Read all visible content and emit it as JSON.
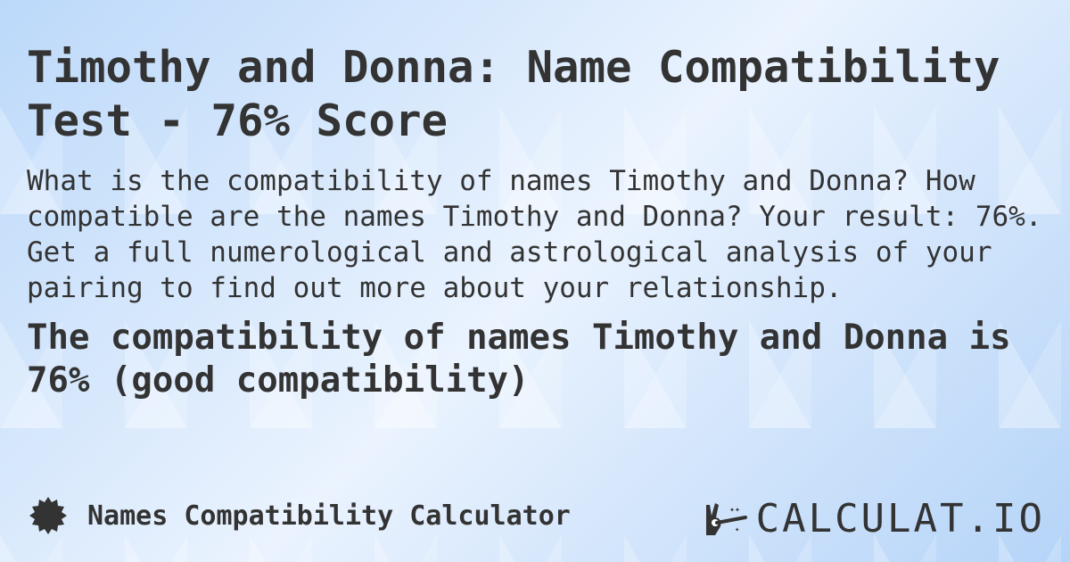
{
  "title": "Timothy and Donna: Name Compatibility Test - 76% Score",
  "description": "What is the compatibility of names Timothy and Donna? How compatible are the names Timothy and Donna? Your result: 76%. Get a full numerological and astrological analysis of your pairing to find out more about your relationship.",
  "result": "The compatibility of names Timothy and Donna is 76% (good compatibility)",
  "footer": {
    "label": "Names Compatibility Calculator",
    "icon": "badge-icon"
  },
  "logo": {
    "text": "CALCULAT.IO",
    "icon": "magic-hand-icon"
  }
}
